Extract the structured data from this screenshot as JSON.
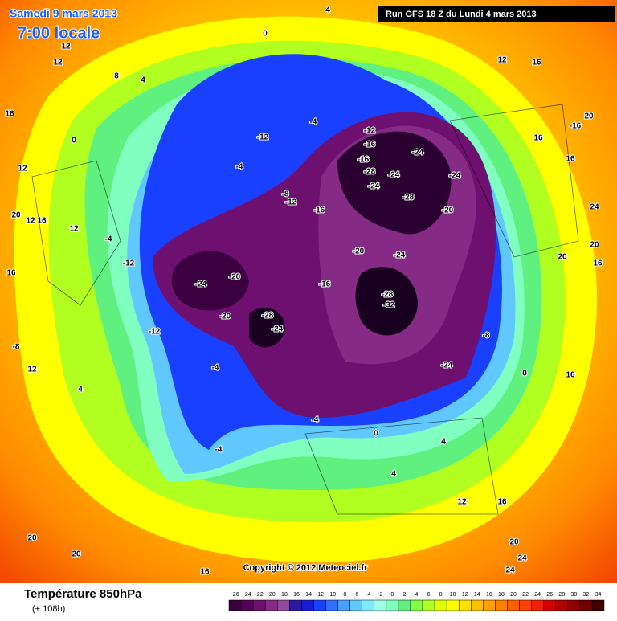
{
  "header": {
    "date": "Samedi 9 mars 2013",
    "time": "7:00 locale",
    "run": "Run GFS 18 Z du Lundi 4 mars 2013"
  },
  "copyright": "Copyright © 2012 Meteociel.fr",
  "footer": {
    "title": "Température 850hPa",
    "lead": "(+ 108h)"
  },
  "legend": {
    "values": [
      -26,
      -24,
      -22,
      -20,
      -18,
      -16,
      -14,
      -12,
      -10,
      -8,
      -6,
      -4,
      -2,
      0,
      2,
      4,
      6,
      8,
      10,
      12,
      14,
      16,
      18,
      20,
      22,
      24,
      26,
      28,
      30,
      32,
      34
    ],
    "colors": [
      "#3b0040",
      "#55005a",
      "#6e1070",
      "#852a85",
      "#8e4a9c",
      "#2b1aa0",
      "#1a1ad0",
      "#1a40ff",
      "#3070ff",
      "#4aa0ff",
      "#60c8ff",
      "#80e8ff",
      "#a0ffe8",
      "#80ffc0",
      "#60f080",
      "#80ff40",
      "#b0ff20",
      "#e0ff00",
      "#ffff00",
      "#ffe000",
      "#ffc000",
      "#ffa000",
      "#ff8000",
      "#ff6000",
      "#ff4000",
      "#f02000",
      "#d00000",
      "#b00000",
      "#900000",
      "#700000",
      "#400000"
    ]
  },
  "contour_labels": [
    0,
    12,
    12,
    8,
    4,
    16,
    0,
    12,
    20,
    12,
    16,
    12,
    -4,
    -12,
    -24,
    -20,
    -20,
    -28,
    -24,
    -12,
    -16,
    -20,
    -24,
    -28,
    -32,
    -24,
    -28,
    -24,
    -24,
    -12,
    -16,
    -16,
    -28,
    -24,
    -20,
    -16,
    -12,
    -4,
    -4,
    -8,
    -12,
    -24,
    -8,
    0,
    16,
    20,
    -16,
    16,
    16,
    16,
    12,
    24,
    20,
    16,
    20,
    4,
    0,
    -4,
    0,
    4,
    4,
    12,
    16,
    20,
    24,
    24,
    20,
    20,
    16,
    12,
    4,
    -8,
    16,
    -4,
    -4
  ]
}
